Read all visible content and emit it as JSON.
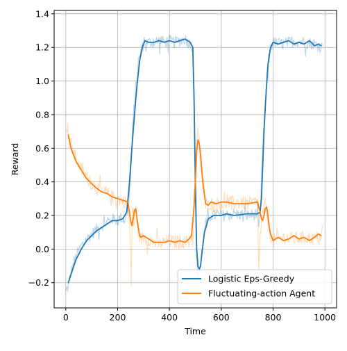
{
  "chart_data": {
    "type": "line",
    "title": "",
    "xlabel": "Time",
    "ylabel": "Reward",
    "xlim": [
      -45,
      1045
    ],
    "ylim": [
      -0.35,
      1.42
    ],
    "x_ticks": [
      0,
      200,
      400,
      600,
      800,
      1000
    ],
    "x_tick_labels": [
      "0",
      "200",
      "400",
      "600",
      "800",
      "1000"
    ],
    "y_ticks": [
      -0.2,
      0.0,
      0.2,
      0.4,
      0.6,
      0.8,
      1.0,
      1.2,
      1.4
    ],
    "y_tick_labels": [
      "−0.2",
      "0.0",
      "0.2",
      "0.4",
      "0.6",
      "0.8",
      "1.0",
      "1.2",
      "1.4"
    ],
    "grid": true,
    "legend_position": "lower-right",
    "series": [
      {
        "name": "Logistic Eps-Greedy",
        "color": "#1f77b4",
        "raw_color": "#1f77b4",
        "raw_opacity": 0.3,
        "raw_noise": 0.035,
        "smooth": {
          "x": [
            10,
            20,
            40,
            60,
            80,
            100,
            120,
            140,
            160,
            180,
            200,
            220,
            235,
            245,
            255,
            265,
            275,
            285,
            295,
            305,
            320,
            340,
            360,
            380,
            400,
            420,
            440,
            460,
            480,
            490,
            495,
            500,
            505,
            510,
            515,
            520,
            525,
            535,
            550,
            570,
            600,
            620,
            650,
            700,
            740,
            750,
            755,
            760,
            765,
            770,
            775,
            780,
            790,
            800,
            820,
            840,
            860,
            880,
            900,
            920,
            940,
            960,
            975,
            985
          ],
          "y": [
            -0.2,
            -0.15,
            -0.06,
            0.0,
            0.05,
            0.08,
            0.11,
            0.13,
            0.15,
            0.17,
            0.17,
            0.18,
            0.22,
            0.38,
            0.6,
            0.8,
            0.98,
            1.12,
            1.2,
            1.24,
            1.23,
            1.23,
            1.24,
            1.23,
            1.24,
            1.23,
            1.24,
            1.25,
            1.23,
            1.2,
            0.9,
            0.4,
            0.0,
            -0.1,
            -0.12,
            -0.1,
            -0.03,
            0.1,
            0.18,
            0.2,
            0.2,
            0.21,
            0.2,
            0.21,
            0.21,
            0.22,
            0.3,
            0.5,
            0.7,
            0.85,
            0.98,
            1.1,
            1.2,
            1.23,
            1.22,
            1.23,
            1.24,
            1.22,
            1.23,
            1.22,
            1.24,
            1.21,
            1.22,
            1.21
          ]
        },
        "raw": {
          "x": [
            0,
            10,
            20,
            40,
            60,
            80,
            100,
            120,
            140,
            160,
            180,
            200,
            215,
            225,
            240,
            250,
            255,
            262,
            270,
            280,
            290,
            300,
            320,
            340,
            360,
            380,
            400,
            420,
            440,
            460,
            480,
            490,
            495,
            500,
            505,
            510,
            520,
            530,
            540,
            560,
            600,
            650,
            700,
            740,
            745,
            750,
            755,
            760,
            770,
            780,
            790,
            800,
            840,
            880,
            920,
            960,
            990
          ],
          "y": [
            -0.26,
            -0.22,
            -0.14,
            -0.04,
            0.02,
            0.06,
            0.09,
            0.12,
            0.14,
            0.16,
            0.18,
            0.17,
            0.19,
            0.17,
            0.23,
            0.42,
            0.6,
            0.82,
            0.96,
            1.1,
            1.18,
            1.22,
            1.23,
            1.23,
            1.24,
            1.23,
            1.24,
            1.23,
            1.24,
            1.25,
            1.22,
            1.2,
            0.95,
            0.3,
            -0.05,
            -0.15,
            -0.1,
            0.05,
            0.15,
            0.2,
            0.2,
            0.21,
            0.2,
            0.21,
            0.1,
            0.22,
            0.4,
            0.6,
            0.85,
            1.05,
            1.2,
            1.23,
            1.22,
            1.24,
            1.23,
            1.22,
            1.2
          ]
        }
      },
      {
        "name": "Fluctuating-action Agent",
        "color": "#ff7f0e",
        "raw_color": "#ffbb78",
        "raw_opacity": 0.5,
        "raw_noise": 0.04,
        "smooth": {
          "x": [
            10,
            20,
            40,
            60,
            80,
            100,
            120,
            140,
            160,
            180,
            200,
            220,
            240,
            250,
            255,
            260,
            265,
            270,
            275,
            280,
            285,
            290,
            300,
            320,
            340,
            360,
            380,
            400,
            420,
            440,
            460,
            475,
            485,
            495,
            500,
            505,
            510,
            515,
            520,
            530,
            540,
            550,
            560,
            580,
            600,
            620,
            650,
            700,
            740,
            750,
            755,
            760,
            765,
            770,
            775,
            780,
            785,
            790,
            800,
            820,
            840,
            860,
            880,
            900,
            920,
            940,
            960,
            975,
            985
          ],
          "y": [
            0.68,
            0.6,
            0.52,
            0.47,
            0.42,
            0.39,
            0.36,
            0.34,
            0.33,
            0.31,
            0.3,
            0.29,
            0.28,
            0.17,
            0.14,
            0.18,
            0.23,
            0.24,
            0.18,
            0.12,
            0.08,
            0.07,
            0.08,
            0.06,
            0.04,
            0.04,
            0.04,
            0.05,
            0.04,
            0.05,
            0.04,
            0.06,
            0.08,
            0.25,
            0.4,
            0.58,
            0.65,
            0.63,
            0.56,
            0.38,
            0.27,
            0.26,
            0.28,
            0.27,
            0.28,
            0.28,
            0.27,
            0.27,
            0.28,
            0.22,
            0.18,
            0.17,
            0.2,
            0.24,
            0.25,
            0.2,
            0.13,
            0.09,
            0.05,
            0.07,
            0.05,
            0.06,
            0.08,
            0.06,
            0.07,
            0.05,
            0.07,
            0.09,
            0.08
          ]
        },
        "raw": {
          "x": [
            0,
            10,
            20,
            40,
            60,
            80,
            100,
            120,
            140,
            160,
            180,
            200,
            220,
            240,
            248,
            252,
            258,
            264,
            270,
            280,
            290,
            300,
            320,
            340,
            360,
            380,
            400,
            420,
            440,
            460,
            480,
            490,
            495,
            500,
            505,
            510,
            515,
            520,
            530,
            540,
            560,
            600,
            650,
            700,
            740,
            745,
            750,
            760,
            770,
            780,
            790,
            800,
            840,
            880,
            920,
            960,
            990
          ],
          "y": [
            0.75,
            0.7,
            0.63,
            0.54,
            0.47,
            0.43,
            0.39,
            0.36,
            0.34,
            0.33,
            0.31,
            0.3,
            0.29,
            0.27,
            0.1,
            -0.2,
            0.3,
            0.1,
            0.25,
            0.1,
            0.06,
            0.07,
            0.06,
            0.04,
            0.03,
            0.04,
            0.05,
            0.04,
            0.05,
            0.04,
            0.06,
            0.1,
            0.28,
            0.48,
            0.66,
            0.69,
            0.6,
            0.52,
            0.36,
            0.27,
            0.27,
            0.27,
            0.28,
            0.27,
            0.28,
            -0.15,
            0.1,
            0.2,
            0.26,
            0.18,
            0.08,
            0.05,
            0.07,
            0.06,
            0.07,
            0.06,
            0.08
          ]
        }
      }
    ]
  }
}
